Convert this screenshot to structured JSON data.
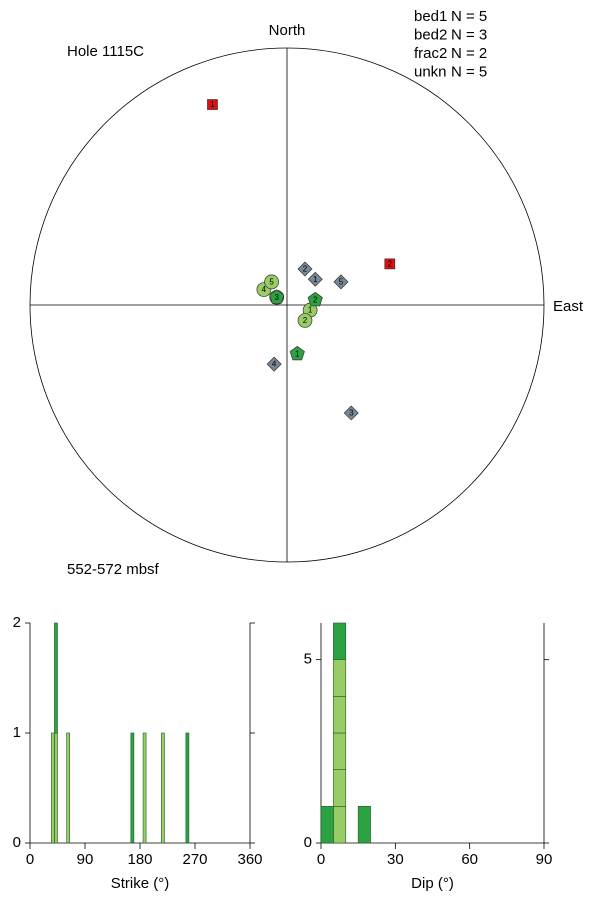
{
  "chart_data": [
    {
      "type": "stereonet",
      "title": "Hole 1115C",
      "subtitle": "552-572 mbsf",
      "north_label": "North",
      "east_label": "East",
      "xlim": [
        -1,
        1
      ],
      "ylim": [
        -1,
        1
      ],
      "series": [
        {
          "name": "bed1",
          "count_label": "N = 5",
          "color": "#99cc66",
          "marker": "circle",
          "labels": [
            "1",
            "2",
            "3",
            "4",
            "5"
          ],
          "x": [
            0.09,
            0.07,
            -0.04,
            -0.09,
            -0.06
          ],
          "values": [
            -0.02,
            -0.06,
            0.03,
            0.06,
            0.09
          ]
        },
        {
          "name": "bed2",
          "count_label": "N = 3",
          "color": "#2ca243",
          "marker": "pentagon",
          "labels": [
            "1",
            "2",
            "3"
          ],
          "x": [
            0.04,
            0.11,
            -0.04
          ],
          "values": [
            -0.19,
            0.02,
            0.03
          ]
        },
        {
          "name": "frac2",
          "count_label": "N = 2",
          "color": "#dd1111",
          "marker": "square",
          "labels": [
            "1",
            "2"
          ],
          "x": [
            -0.29,
            0.4
          ],
          "values": [
            0.78,
            0.16
          ]
        },
        {
          "name": "unkn",
          "count_label": "N = 5",
          "color": "#7a8796",
          "marker": "diamond",
          "labels": [
            "1",
            "2",
            "3",
            "4",
            "5"
          ],
          "x": [
            0.11,
            0.07,
            0.25,
            -0.05,
            0.21
          ],
          "values": [
            0.1,
            0.14,
            -0.42,
            -0.23,
            0.09
          ]
        }
      ]
    },
    {
      "type": "histogram",
      "x_label": "Strike (°)",
      "bins": [
        0,
        5,
        10,
        15,
        20,
        25,
        30,
        35,
        40,
        45,
        50,
        55,
        60,
        65,
        70,
        75,
        80,
        85,
        90,
        95,
        100,
        105,
        110,
        115,
        120,
        125,
        130,
        135,
        140,
        145,
        150,
        155,
        160,
        165,
        170,
        175,
        180,
        185,
        190,
        195,
        200,
        205,
        210,
        215,
        220,
        225,
        230,
        235,
        240,
        245,
        250,
        255,
        260,
        265,
        270,
        275,
        280,
        285,
        290,
        295,
        300,
        305,
        310,
        315,
        320,
        325,
        330,
        335,
        340,
        345,
        350,
        355,
        360
      ],
      "series": [
        {
          "color": "#99cc66",
          "values": [
            0,
            0,
            0,
            0,
            0,
            0,
            0,
            1,
            1,
            0,
            0,
            0,
            1,
            0,
            0,
            0,
            0,
            0,
            0,
            0,
            0,
            0,
            0,
            0,
            0,
            0,
            0,
            0,
            0,
            0,
            0,
            0,
            0,
            0,
            0,
            0,
            0,
            1,
            0,
            0,
            0,
            0,
            0,
            1,
            0,
            0,
            0,
            0,
            0,
            0,
            0,
            0,
            0,
            0,
            0,
            0,
            0,
            0,
            0,
            0,
            0,
            0,
            0,
            0,
            0,
            0,
            0,
            0,
            0,
            0,
            0,
            0
          ]
        },
        {
          "color": "#2ca243",
          "values": [
            0,
            0,
            0,
            0,
            0,
            0,
            0,
            0,
            1,
            0,
            0,
            0,
            0,
            0,
            0,
            0,
            0,
            0,
            0,
            0,
            0,
            0,
            0,
            0,
            0,
            0,
            0,
            0,
            0,
            0,
            0,
            0,
            0,
            1,
            0,
            0,
            0,
            0,
            0,
            0,
            0,
            0,
            0,
            0,
            0,
            0,
            0,
            0,
            0,
            0,
            0,
            1,
            0,
            0,
            0,
            0,
            0,
            0,
            0,
            0,
            0,
            0,
            0,
            0,
            0,
            0,
            0,
            0,
            0,
            0,
            0,
            0
          ]
        }
      ],
      "xlim": [
        0,
        360
      ],
      "xticks": [
        0,
        90,
        180,
        270,
        360
      ],
      "ylim": [
        0,
        2
      ],
      "yticks": [
        0,
        1,
        2
      ]
    },
    {
      "type": "histogram",
      "x_label": "Dip (°)",
      "bins": [
        0,
        5,
        10,
        15,
        20,
        25,
        30,
        35,
        40,
        45,
        50,
        55,
        60,
        65,
        70,
        75,
        80,
        85,
        90
      ],
      "series": [
        {
          "color": "#99cc66",
          "values": [
            0,
            5,
            0,
            0,
            0,
            0,
            0,
            0,
            0,
            0,
            0,
            0,
            0,
            0,
            0,
            0,
            0,
            0
          ]
        },
        {
          "color": "#2ca243",
          "values": [
            1,
            1,
            0,
            1,
            0,
            0,
            0,
            0,
            0,
            0,
            0,
            0,
            0,
            0,
            0,
            0,
            0,
            0
          ]
        }
      ],
      "xlim": [
        0,
        90
      ],
      "xticks": [
        0,
        30,
        60,
        90
      ],
      "ylim": [
        0,
        6
      ],
      "yticks": [
        0,
        5
      ]
    }
  ]
}
